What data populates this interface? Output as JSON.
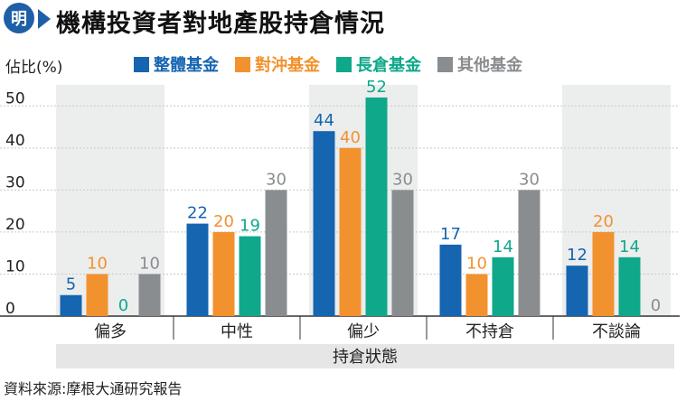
{
  "logo": {
    "glyph": "明",
    "color": "#1f5fa8"
  },
  "title": "機構投資者對地產股持倉情況",
  "unit_label": "佔比(%)",
  "source": "資料來源:摩根大通研究報告",
  "chart_data": {
    "type": "bar",
    "title": "機構投資者對地產股持倉情況",
    "ylabel": "佔比(%)",
    "xlabel": "持倉狀態",
    "ylim": [
      0,
      55
    ],
    "yticks": [
      0,
      10,
      20,
      30,
      40,
      50
    ],
    "grid": true,
    "legend_position": "top",
    "categories": [
      "偏多",
      "中性",
      "偏少",
      "不持倉",
      "不談論"
    ],
    "series": [
      {
        "name": "整體基金",
        "color": "#1565b0",
        "values": [
          5,
          22,
          44,
          17,
          12
        ],
        "labels": [
          "5",
          "22",
          "44",
          "17",
          "12"
        ]
      },
      {
        "name": "對沖基金",
        "color": "#f2922f",
        "values": [
          10,
          20,
          40,
          10,
          20
        ],
        "labels": [
          "10",
          "20",
          "40",
          "10",
          "20"
        ]
      },
      {
        "name": "長倉基金",
        "color": "#0fa88b",
        "values": [
          0,
          19,
          52,
          14,
          14
        ],
        "labels": [
          "0",
          "19",
          "52",
          "14",
          "14"
        ]
      },
      {
        "name": "其他基金",
        "color": "#8a8d90",
        "values": [
          10,
          30,
          30,
          30,
          0
        ],
        "labels": [
          "10",
          "30",
          "30",
          "30",
          "0"
        ]
      }
    ]
  }
}
